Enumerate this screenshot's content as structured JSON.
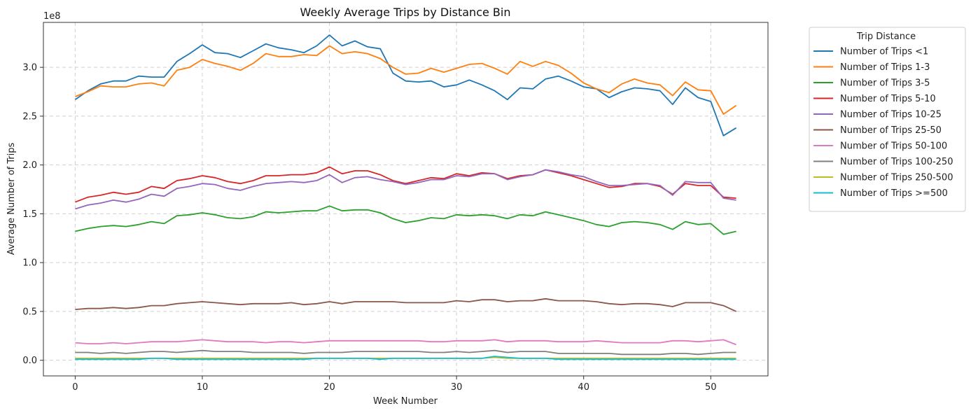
{
  "chart_data": {
    "type": "line",
    "title": "Weekly Average Trips by Distance Bin",
    "xlabel": "Week Number",
    "ylabel": "Average Number of Trips",
    "y_offset_label": "1e8",
    "xlim": [
      -2.5,
      54.5
    ],
    "ylim": [
      -0.16,
      3.46
    ],
    "y_scale_factor": 100000000,
    "xticks": [
      0,
      10,
      20,
      30,
      40,
      50
    ],
    "yticks": [
      0.0,
      0.5,
      1.0,
      1.5,
      2.0,
      2.5,
      3.0
    ],
    "ytick_labels": [
      "0.0",
      "0.5",
      "1.0",
      "1.5",
      "2.0",
      "2.5",
      "3.0"
    ],
    "grid": true,
    "legend_title": "Trip Distance",
    "legend_position": "outside-upper-right",
    "x": [
      0,
      1,
      2,
      3,
      4,
      5,
      6,
      7,
      8,
      9,
      10,
      11,
      12,
      13,
      14,
      15,
      16,
      17,
      18,
      19,
      20,
      21,
      22,
      23,
      24,
      25,
      26,
      27,
      28,
      29,
      30,
      31,
      32,
      33,
      34,
      35,
      36,
      37,
      38,
      39,
      40,
      41,
      42,
      43,
      44,
      45,
      46,
      47,
      48,
      49,
      50,
      51,
      52
    ],
    "series": [
      {
        "name": "Number of Trips <1",
        "color": "#1f77b4",
        "values": [
          2.67,
          2.76,
          2.83,
          2.86,
          2.86,
          2.91,
          2.9,
          2.9,
          3.06,
          3.14,
          3.23,
          3.15,
          3.14,
          3.1,
          3.17,
          3.24,
          3.2,
          3.18,
          3.15,
          3.22,
          3.33,
          3.22,
          3.27,
          3.21,
          3.19,
          2.94,
          2.86,
          2.85,
          2.86,
          2.8,
          2.82,
          2.87,
          2.82,
          2.76,
          2.67,
          2.79,
          2.78,
          2.88,
          2.91,
          2.86,
          2.8,
          2.78,
          2.69,
          2.75,
          2.79,
          2.78,
          2.76,
          2.62,
          2.79,
          2.69,
          2.65,
          2.3,
          2.38
        ]
      },
      {
        "name": "Number of Trips 1-3",
        "color": "#ff7f0e",
        "values": [
          2.7,
          2.75,
          2.81,
          2.8,
          2.8,
          2.83,
          2.84,
          2.81,
          2.97,
          3.0,
          3.08,
          3.04,
          3.01,
          2.97,
          3.04,
          3.14,
          3.11,
          3.11,
          3.13,
          3.12,
          3.22,
          3.14,
          3.16,
          3.14,
          3.09,
          3.0,
          2.93,
          2.94,
          2.99,
          2.95,
          2.99,
          3.03,
          3.04,
          2.99,
          2.93,
          3.06,
          3.01,
          3.06,
          3.02,
          2.94,
          2.84,
          2.78,
          2.74,
          2.83,
          2.88,
          2.84,
          2.82,
          2.71,
          2.85,
          2.77,
          2.76,
          2.52,
          2.61
        ]
      },
      {
        "name": "Number of Trips 3-5",
        "color": "#2ca02c",
        "values": [
          1.32,
          1.35,
          1.37,
          1.38,
          1.37,
          1.39,
          1.42,
          1.4,
          1.48,
          1.49,
          1.51,
          1.49,
          1.46,
          1.45,
          1.47,
          1.52,
          1.51,
          1.52,
          1.53,
          1.53,
          1.58,
          1.53,
          1.54,
          1.54,
          1.51,
          1.45,
          1.41,
          1.43,
          1.46,
          1.45,
          1.49,
          1.48,
          1.49,
          1.48,
          1.45,
          1.49,
          1.48,
          1.52,
          1.49,
          1.46,
          1.43,
          1.39,
          1.37,
          1.41,
          1.42,
          1.41,
          1.39,
          1.34,
          1.42,
          1.39,
          1.4,
          1.29,
          1.32
        ]
      },
      {
        "name": "Number of Trips 5-10",
        "color": "#d62728",
        "values": [
          1.62,
          1.67,
          1.69,
          1.72,
          1.7,
          1.72,
          1.78,
          1.76,
          1.84,
          1.86,
          1.89,
          1.87,
          1.83,
          1.81,
          1.84,
          1.89,
          1.89,
          1.9,
          1.9,
          1.92,
          1.98,
          1.91,
          1.94,
          1.94,
          1.9,
          1.84,
          1.81,
          1.84,
          1.87,
          1.86,
          1.91,
          1.89,
          1.92,
          1.91,
          1.86,
          1.89,
          1.9,
          1.95,
          1.92,
          1.89,
          1.85,
          1.81,
          1.77,
          1.78,
          1.81,
          1.81,
          1.78,
          1.7,
          1.81,
          1.79,
          1.79,
          1.67,
          1.66
        ]
      },
      {
        "name": "Number of Trips 10-25",
        "color": "#9467bd",
        "values": [
          1.55,
          1.59,
          1.61,
          1.64,
          1.62,
          1.65,
          1.7,
          1.68,
          1.76,
          1.78,
          1.81,
          1.8,
          1.76,
          1.74,
          1.78,
          1.81,
          1.82,
          1.83,
          1.82,
          1.84,
          1.9,
          1.82,
          1.87,
          1.88,
          1.85,
          1.83,
          1.8,
          1.82,
          1.85,
          1.85,
          1.89,
          1.88,
          1.91,
          1.91,
          1.85,
          1.88,
          1.9,
          1.95,
          1.93,
          1.9,
          1.88,
          1.83,
          1.79,
          1.79,
          1.8,
          1.81,
          1.79,
          1.69,
          1.83,
          1.82,
          1.82,
          1.66,
          1.64
        ]
      },
      {
        "name": "Number of Trips 25-50",
        "color": "#8c564b",
        "values": [
          0.52,
          0.53,
          0.53,
          0.54,
          0.53,
          0.54,
          0.56,
          0.56,
          0.58,
          0.59,
          0.6,
          0.59,
          0.58,
          0.57,
          0.58,
          0.58,
          0.58,
          0.59,
          0.57,
          0.58,
          0.6,
          0.58,
          0.6,
          0.6,
          0.6,
          0.6,
          0.59,
          0.59,
          0.59,
          0.59,
          0.61,
          0.6,
          0.62,
          0.62,
          0.6,
          0.61,
          0.61,
          0.63,
          0.61,
          0.61,
          0.61,
          0.6,
          0.58,
          0.57,
          0.58,
          0.58,
          0.57,
          0.55,
          0.59,
          0.59,
          0.59,
          0.56,
          0.5
        ]
      },
      {
        "name": "Number of Trips 50-100",
        "color": "#e377c2",
        "values": [
          0.18,
          0.17,
          0.17,
          0.18,
          0.17,
          0.18,
          0.19,
          0.19,
          0.19,
          0.2,
          0.21,
          0.2,
          0.19,
          0.19,
          0.19,
          0.18,
          0.19,
          0.19,
          0.18,
          0.19,
          0.2,
          0.2,
          0.2,
          0.2,
          0.2,
          0.2,
          0.2,
          0.2,
          0.19,
          0.19,
          0.2,
          0.2,
          0.2,
          0.21,
          0.19,
          0.2,
          0.2,
          0.2,
          0.19,
          0.19,
          0.19,
          0.2,
          0.19,
          0.18,
          0.18,
          0.18,
          0.18,
          0.2,
          0.2,
          0.19,
          0.2,
          0.21,
          0.16
        ]
      },
      {
        "name": "Number of Trips 100-250",
        "color": "#7f7f7f",
        "values": [
          0.08,
          0.08,
          0.07,
          0.08,
          0.07,
          0.08,
          0.09,
          0.09,
          0.08,
          0.09,
          0.1,
          0.09,
          0.09,
          0.09,
          0.08,
          0.08,
          0.08,
          0.08,
          0.07,
          0.08,
          0.08,
          0.08,
          0.09,
          0.09,
          0.09,
          0.09,
          0.09,
          0.09,
          0.08,
          0.08,
          0.09,
          0.08,
          0.09,
          0.1,
          0.08,
          0.09,
          0.09,
          0.09,
          0.07,
          0.07,
          0.07,
          0.07,
          0.07,
          0.06,
          0.06,
          0.06,
          0.06,
          0.07,
          0.07,
          0.06,
          0.07,
          0.08,
          0.08
        ]
      },
      {
        "name": "Number of Trips 250-500",
        "color": "#bcbd22",
        "values": [
          0.02,
          0.02,
          0.02,
          0.02,
          0.02,
          0.02,
          0.02,
          0.02,
          0.02,
          0.02,
          0.02,
          0.02,
          0.02,
          0.02,
          0.02,
          0.02,
          0.02,
          0.02,
          0.02,
          0.02,
          0.02,
          0.02,
          0.02,
          0.02,
          0.02,
          0.02,
          0.02,
          0.02,
          0.02,
          0.02,
          0.02,
          0.02,
          0.02,
          0.03,
          0.02,
          0.02,
          0.02,
          0.02,
          0.02,
          0.02,
          0.02,
          0.02,
          0.02,
          0.02,
          0.02,
          0.02,
          0.02,
          0.02,
          0.02,
          0.02,
          0.02,
          0.02,
          0.02
        ]
      },
      {
        "name": "Number of Trips >=500",
        "color": "#17becf",
        "values": [
          0.01,
          0.01,
          0.01,
          0.01,
          0.01,
          0.01,
          0.02,
          0.02,
          0.01,
          0.01,
          0.01,
          0.01,
          0.01,
          0.01,
          0.01,
          0.01,
          0.01,
          0.01,
          0.01,
          0.02,
          0.02,
          0.02,
          0.02,
          0.02,
          0.01,
          0.02,
          0.02,
          0.02,
          0.02,
          0.02,
          0.02,
          0.02,
          0.02,
          0.04,
          0.03,
          0.02,
          0.02,
          0.02,
          0.01,
          0.01,
          0.01,
          0.01,
          0.01,
          0.01,
          0.01,
          0.01,
          0.01,
          0.01,
          0.01,
          0.01,
          0.01,
          0.01,
          0.01
        ]
      }
    ]
  }
}
